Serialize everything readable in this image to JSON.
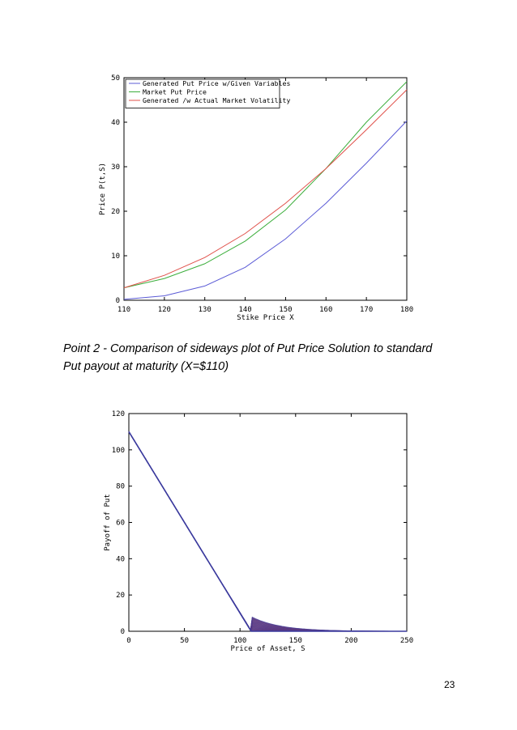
{
  "caption": "Point 2 - Comparison of sideways plot of Put Price Solution to standard Put payout at maturity (X=$110)",
  "page_number": "23",
  "chart_data": [
    {
      "type": "line",
      "xlabel": "Stike Price X",
      "ylabel": "Price P(t,S)",
      "xlim": [
        110,
        180
      ],
      "ylim": [
        0,
        50
      ],
      "xticks": [
        110,
        120,
        130,
        140,
        150,
        160,
        170,
        180
      ],
      "yticks": [
        0,
        10,
        20,
        30,
        40,
        50
      ],
      "legend_position": "top-left",
      "x": [
        110,
        120,
        130,
        140,
        150,
        160,
        170,
        180
      ],
      "series": [
        {
          "name": "Generated Put Price w/Given Variables",
          "color": "#5b5bd6",
          "values": [
            0.2,
            1.0,
            3.2,
            7.4,
            13.8,
            21.8,
            30.8,
            40.3
          ]
        },
        {
          "name": "Market Put Price",
          "color": "#3cae3c",
          "values": [
            2.8,
            4.9,
            8.2,
            13.3,
            20.3,
            29.6,
            40.0,
            49.1
          ]
        },
        {
          "name": "Generated /w Actual Market Volatility",
          "color": "#e0504a",
          "values": [
            2.8,
            5.6,
            9.6,
            15.0,
            21.8,
            29.6,
            38.3,
            47.3
          ]
        }
      ]
    },
    {
      "type": "line",
      "xlabel": "Price of Asset, S",
      "ylabel": "Payoff of Put",
      "xlim": [
        0,
        250
      ],
      "ylim": [
        0,
        120
      ],
      "xticks": [
        0,
        50,
        100,
        150,
        200,
        250
      ],
      "yticks": [
        0,
        20,
        40,
        60,
        80,
        100,
        120
      ],
      "strike": 110,
      "curve_count": 40,
      "colors": {
        "payoff": "#3a3a9e",
        "fill": "#7a3a6a"
      }
    }
  ]
}
